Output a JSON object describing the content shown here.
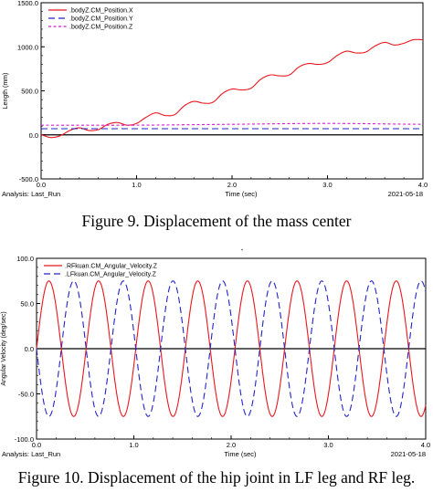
{
  "captions": {
    "fig9": "Figure 9. Displacement of the mass center",
    "fig10": "Figure 10. Displacement of the hip joint in LF leg and RF leg."
  },
  "chart_data": [
    {
      "type": "line",
      "ylabel": "Length (mm)",
      "xlabel": "Time (sec)",
      "analysis": "Analysis:  Last_Run",
      "date": "2021-05-18",
      "xlim": [
        0.0,
        4.0
      ],
      "ylim": [
        -500.0,
        1500.0
      ],
      "x_ticks": [
        "0.0",
        "1.0",
        "2.0",
        "3.0",
        "4.0"
      ],
      "y_ticks": [
        "-500.0",
        "0.0",
        "500.0",
        "1000.0",
        "1500.0"
      ],
      "legend_position": "top-left",
      "grid": false,
      "series": [
        {
          "name": ".bodyZ.CM_Position.X",
          "color": "#e8171f",
          "dash": "solid",
          "x": [
            0.0,
            0.1,
            0.2,
            0.3,
            0.4,
            0.5,
            0.6,
            0.7,
            0.8,
            0.9,
            1.0,
            1.1,
            1.2,
            1.3,
            1.4,
            1.5,
            1.6,
            1.7,
            1.8,
            1.9,
            2.0,
            2.1,
            2.2,
            2.3,
            2.4,
            2.5,
            2.6,
            2.7,
            2.8,
            2.9,
            3.0,
            3.1,
            3.2,
            3.3,
            3.4,
            3.5,
            3.6,
            3.7,
            3.8,
            3.9,
            4.0
          ],
          "values": [
            0,
            -30,
            -10,
            50,
            80,
            50,
            60,
            120,
            140,
            110,
            130,
            200,
            250,
            220,
            230,
            330,
            380,
            360,
            370,
            470,
            520,
            510,
            530,
            630,
            680,
            670,
            680,
            770,
            810,
            800,
            820,
            900,
            950,
            930,
            940,
            1010,
            1050,
            1020,
            1040,
            1080,
            1080
          ]
        },
        {
          "name": ".bodyZ.CM_Position.Y",
          "color": "#2323c8",
          "dash": "long",
          "x": [
            0.0,
            1.0,
            2.0,
            3.0,
            4.0
          ],
          "values": [
            70,
            70,
            70,
            70,
            70
          ]
        },
        {
          "name": ".bodyZ.CM_Position.Z",
          "color": "#d318d0",
          "dash": "short",
          "x": [
            0.0,
            1.0,
            2.0,
            3.0,
            4.0
          ],
          "values": [
            110,
            110,
            120,
            130,
            120
          ]
        }
      ]
    },
    {
      "type": "line",
      "ylabel": "Angular Velocity (deg/sec)",
      "xlabel": "Time (sec)",
      "analysis": "Analysis:  Last_Run",
      "date": "2021-05-18",
      "top_mark": "-",
      "xlim": [
        0.0,
        4.0
      ],
      "ylim": [
        -100.0,
        100.0
      ],
      "x_ticks": [
        "0.0",
        "1.0",
        "2.0",
        "3.0",
        "4.0"
      ],
      "y_ticks": [
        "-100.0",
        "-50.0",
        "0.0",
        "50.0",
        "100.0"
      ],
      "legend_position": "top-left",
      "grid": false,
      "series": [
        {
          "name": ".RFkuan.CM_Angular_Velocity.Z",
          "color": "#e8171f",
          "dash": "solid",
          "amplitude": 75,
          "period": 0.51,
          "phase": 0
        },
        {
          "name": ".LFkuan.CM_Angular_Velocity.Z",
          "color": "#2323c8",
          "dash": "long",
          "amplitude": 75,
          "period": 0.51,
          "phase": 3.14159
        }
      ]
    }
  ]
}
